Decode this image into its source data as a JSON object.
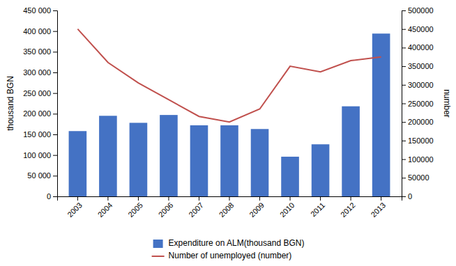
{
  "chart_data": {
    "type": "bar",
    "categories": [
      "2003",
      "2004",
      "2005",
      "2006",
      "2007",
      "2008",
      "2009",
      "2010",
      "2011",
      "2012",
      "2013"
    ],
    "series": [
      {
        "name": "Expenditure on ALM(thousand BGN)",
        "type": "bar",
        "color": "#4472C4",
        "values": [
          158000,
          195000,
          178000,
          197000,
          172000,
          172000,
          163000,
          96000,
          126000,
          218000,
          394000
        ]
      },
      {
        "name": "Number of unemployed (number)",
        "type": "line",
        "color": "#C0504D",
        "axis": "y2",
        "values": [
          450000,
          360000,
          305000,
          260000,
          215000,
          200000,
          235000,
          350000,
          335000,
          365000,
          375000
        ]
      }
    ],
    "ylabel": "thousand BGN",
    "y2label": "number",
    "ylim": [
      0,
      450000
    ],
    "yticks": [
      0,
      {
        "value": 50000,
        "label": "50 000"
      },
      {
        "value": 100000,
        "label": "100 000"
      },
      {
        "value": 150000,
        "label": "150 000"
      },
      {
        "value": 200000,
        "label": "200 000"
      },
      {
        "value": 250000,
        "label": "250 000"
      },
      {
        "value": 300000,
        "label": "300 000"
      },
      {
        "value": 350000,
        "label": "350 000"
      },
      {
        "value": 400000,
        "label": "400 000"
      },
      {
        "value": 450000,
        "label": "450 000"
      }
    ],
    "y2lim": [
      0,
      500000
    ],
    "y2ticks": [
      0,
      50000,
      100000,
      150000,
      200000,
      250000,
      300000,
      350000,
      400000,
      450000,
      500000
    ],
    "grid": false,
    "legend": "bottom"
  }
}
